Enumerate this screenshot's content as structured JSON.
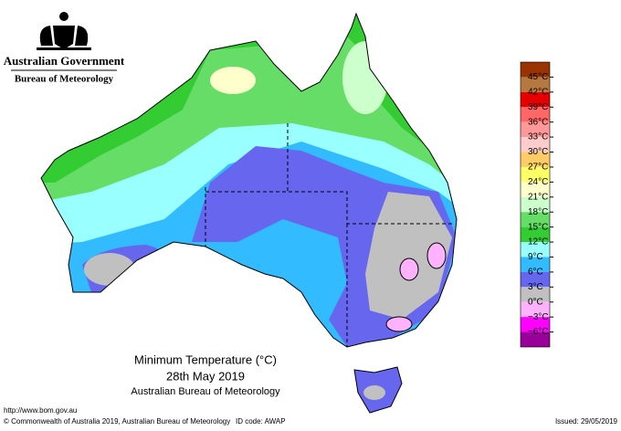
{
  "header": {
    "agency": "Australian Government",
    "bureau": "Bureau of Meteorology"
  },
  "map": {
    "title": "Minimum Temperature (°C)",
    "date": "28th May 2019",
    "source": "Australian Bureau of Meteorology"
  },
  "legend": {
    "bands": [
      "#993300",
      "#b5793f",
      "#e60000",
      "#ff6666",
      "#ff9999",
      "#ffcccc",
      "#ffcc66",
      "#ffff66",
      "#ffffcc",
      "#ccffcc",
      "#66dd66",
      "#33cc33",
      "#99ffff",
      "#33bbff",
      "#6666ee",
      "#c0c0c0",
      "#ffb3ff",
      "#ff00ff",
      "#990099"
    ],
    "labels": [
      "45°C",
      "42°C",
      "39°C",
      "36°C",
      "33°C",
      "30°C",
      "27°C",
      "24°C",
      "21°C",
      "18°C",
      "15°C",
      "12°C",
      "9°C",
      "6°C",
      "3°C",
      "0°C",
      "−3°C",
      "−6°C"
    ]
  },
  "footer": {
    "url": "http://www.bom.gov.au",
    "copyright": "© Commonwealth of Australia 2019, Australian Bureau of Meteorology",
    "id_code": "ID code: AWAP",
    "issued": "Issued: 29/05/2019"
  }
}
